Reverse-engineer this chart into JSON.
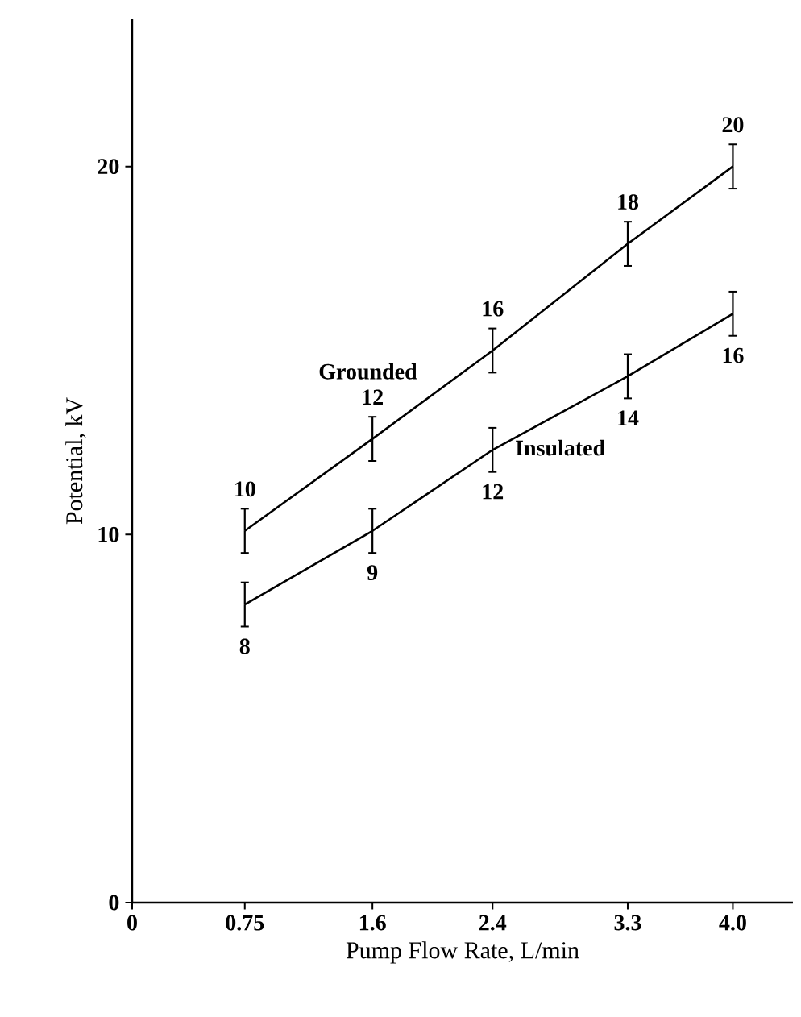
{
  "chart_data": {
    "type": "line",
    "xlabel": "Pump Flow Rate, L/min",
    "ylabel": "Potential, kV",
    "xlim": [
      0,
      4.4
    ],
    "xticks": [
      0,
      0.75,
      1.6,
      2.4,
      3.3,
      {
        "value": 4.0,
        "label": "4.0"
      }
    ],
    "ylim": [
      0,
      24
    ],
    "yticks": [
      0,
      10,
      20
    ],
    "x": [
      0.75,
      1.6,
      2.4,
      3.3,
      4.0
    ],
    "series": [
      {
        "name": "Grounded",
        "color": "#000000",
        "values": [
          10.1,
          12.6,
          15.0,
          17.9,
          20.0
        ],
        "errors": [
          0.6,
          0.6,
          0.6,
          0.6,
          0.6
        ]
      },
      {
        "name": "Insulated",
        "color": "#000000",
        "values": [
          8.1,
          10.1,
          12.3,
          14.3,
          16.0
        ],
        "errors": [
          0.6,
          0.6,
          0.6,
          0.6,
          0.6
        ]
      }
    ],
    "annotations": [
      {
        "text": "10",
        "x": 0.75,
        "y": 10.1
      },
      {
        "text": "12",
        "x": 1.6,
        "y": 12.6
      },
      {
        "text": "16",
        "x": 2.4,
        "y": 15.0
      },
      {
        "text": "18",
        "x": 3.3,
        "y": 17.9
      },
      {
        "text": "20",
        "x": 4.0,
        "y": 20.0
      },
      {
        "text": "8",
        "x": 0.75,
        "y": 8.1
      },
      {
        "text": "9",
        "x": 1.6,
        "y": 10.1
      },
      {
        "text": "12",
        "x": 2.4,
        "y": 12.3
      },
      {
        "text": "14",
        "x": 3.3,
        "y": 14.3
      },
      {
        "text": "16",
        "x": 4.0,
        "y": 16.0
      }
    ],
    "marker": "none",
    "line_style": "solid",
    "legend": false,
    "grid": false
  }
}
